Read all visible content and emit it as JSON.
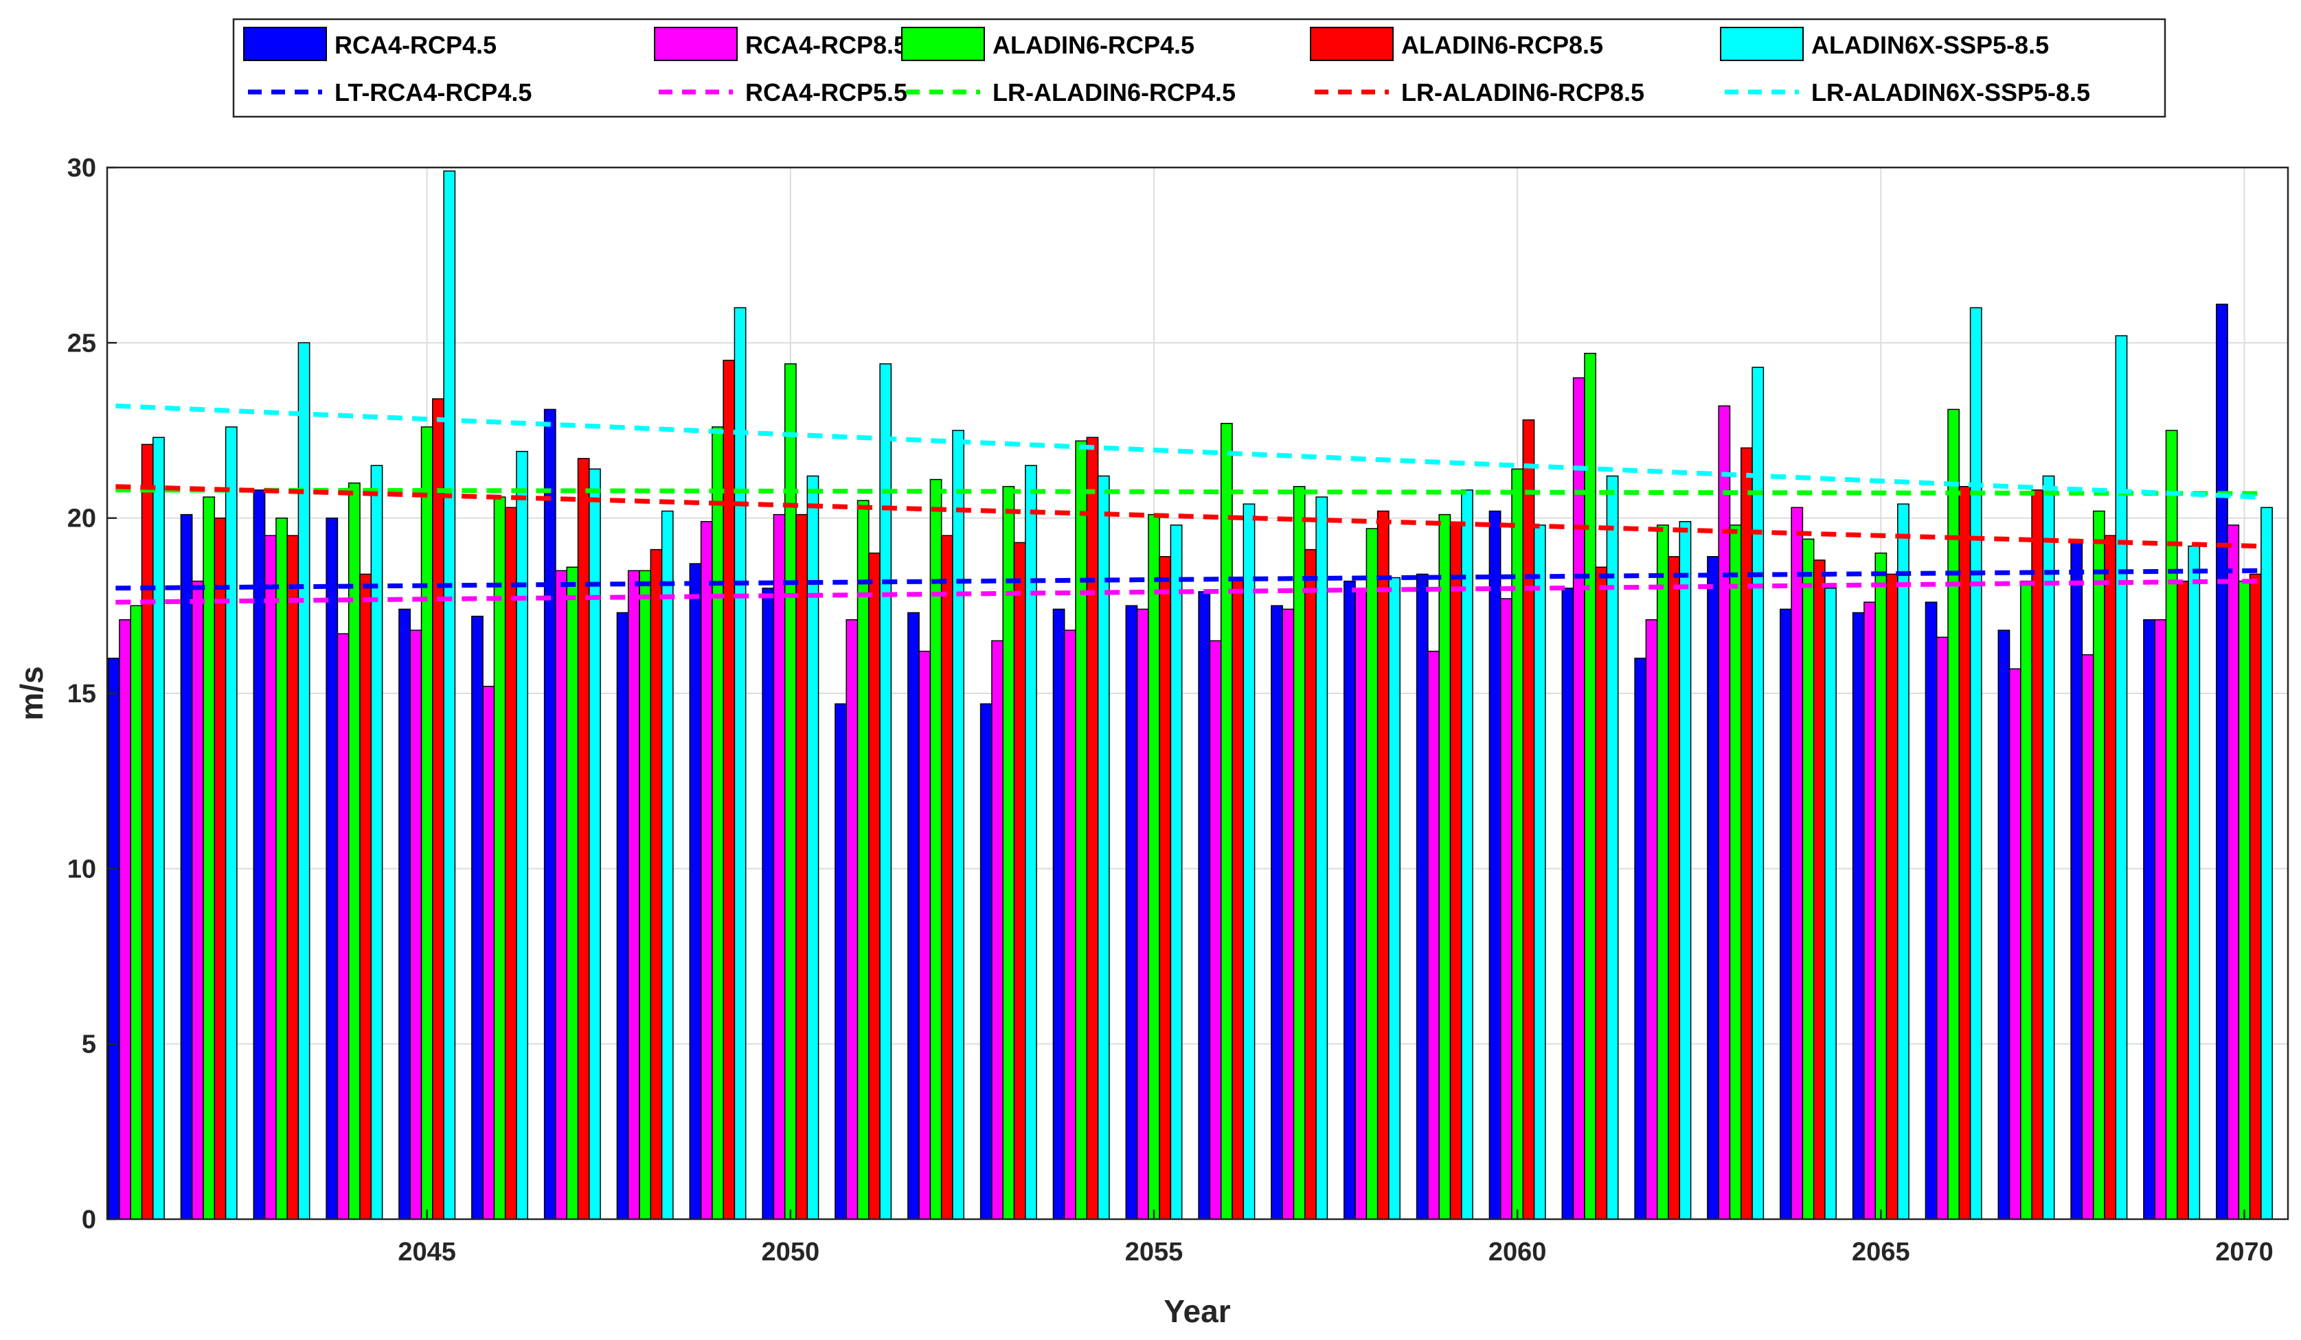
{
  "chart_data": {
    "type": "bar",
    "title": "",
    "xlabel": "Year",
    "ylabel": "m/s",
    "ylim": [
      0,
      30
    ],
    "yticks": [
      0,
      5,
      10,
      15,
      20,
      25,
      30
    ],
    "xticks": [
      2045,
      2050,
      2055,
      2060,
      2065,
      2070
    ],
    "xlim": [
      2040.6,
      2070.6
    ],
    "grid": true,
    "legend_position": "top",
    "x": [
      2041,
      2042,
      2043,
      2044,
      2045,
      2046,
      2047,
      2048,
      2049,
      2050,
      2051,
      2052,
      2053,
      2054,
      2055,
      2056,
      2057,
      2058,
      2059,
      2060,
      2061,
      2062,
      2063,
      2064,
      2065,
      2066,
      2067,
      2068,
      2069,
      2070
    ],
    "series": [
      {
        "name": "RCA4-RCP4.5",
        "color": "#0000ff",
        "values": [
          16.0,
          20.1,
          20.8,
          20.0,
          17.4,
          17.2,
          23.1,
          17.3,
          18.7,
          18.0,
          14.7,
          17.3,
          14.7,
          17.4,
          17.5,
          17.9,
          17.5,
          18.2,
          18.4,
          20.2,
          18.0,
          16.0,
          18.9,
          17.4,
          17.3,
          17.6,
          16.8,
          19.3,
          17.1,
          26.1
        ]
      },
      {
        "name": "RCA4-RCP8.5",
        "color": "#ff00ff",
        "values": [
          17.1,
          18.2,
          19.5,
          16.7,
          16.8,
          15.2,
          18.5,
          18.5,
          19.9,
          20.1,
          17.1,
          16.2,
          16.5,
          16.8,
          17.4,
          16.5,
          17.4,
          17.9,
          16.2,
          17.7,
          24.0,
          17.1,
          23.2,
          20.3,
          17.6,
          16.6,
          15.7,
          16.1,
          17.1,
          19.8
        ]
      },
      {
        "name": "ALADIN6-RCP4.5",
        "color": "#00ff00",
        "values": [
          17.5,
          20.6,
          20.0,
          21.0,
          22.6,
          20.6,
          18.6,
          18.5,
          22.6,
          24.4,
          20.5,
          21.1,
          20.9,
          22.2,
          20.1,
          22.7,
          20.9,
          19.7,
          20.1,
          21.4,
          24.7,
          19.8,
          19.8,
          19.4,
          19.0,
          23.1,
          18.2,
          20.2,
          22.5,
          18.2
        ]
      },
      {
        "name": "ALADIN6-RCP8.5",
        "color": "#ff0000",
        "values": [
          22.1,
          20.0,
          19.5,
          18.4,
          23.4,
          20.3,
          21.7,
          19.1,
          24.5,
          20.1,
          19.0,
          19.5,
          19.3,
          22.3,
          18.9,
          18.3,
          19.1,
          20.2,
          19.8,
          22.8,
          18.6,
          18.9,
          22.0,
          18.8,
          18.4,
          20.9,
          20.8,
          19.5,
          18.2,
          18.4
        ]
      },
      {
        "name": "ALADIN6X-SSP5-8.5",
        "color": "#00ffff",
        "values": [
          22.3,
          22.6,
          25.0,
          21.5,
          29.9,
          21.9,
          21.4,
          20.2,
          26.0,
          21.2,
          24.4,
          22.5,
          21.5,
          21.2,
          19.8,
          20.4,
          20.6,
          18.3,
          20.8,
          19.8,
          21.2,
          19.9,
          24.3,
          18.0,
          20.4,
          26.0,
          21.2,
          25.2,
          19.2,
          20.3
        ]
      }
    ],
    "trend_lines": [
      {
        "name": "LT-RCA4-RCP4.5",
        "color": "#0000ff",
        "start": [
          2041,
          18.0
        ],
        "end": [
          2070,
          18.5
        ]
      },
      {
        "name": "RCA4-RCP5.5",
        "color": "#ff00ff",
        "start": [
          2041,
          17.6
        ],
        "end": [
          2070,
          18.2
        ]
      },
      {
        "name": "LR-ALADIN6-RCP4.5",
        "color": "#00ff00",
        "start": [
          2041,
          20.8
        ],
        "end": [
          2070,
          20.7
        ]
      },
      {
        "name": "LR-ALADIN6-RCP8.5",
        "color": "#ff0000",
        "start": [
          2041,
          20.9
        ],
        "end": [
          2070,
          19.2
        ]
      },
      {
        "name": "LR-ALADIN6X-SSP5-8.5",
        "color": "#00ffff",
        "start": [
          2041,
          23.2
        ],
        "end": [
          2070,
          20.6
        ]
      }
    ]
  }
}
